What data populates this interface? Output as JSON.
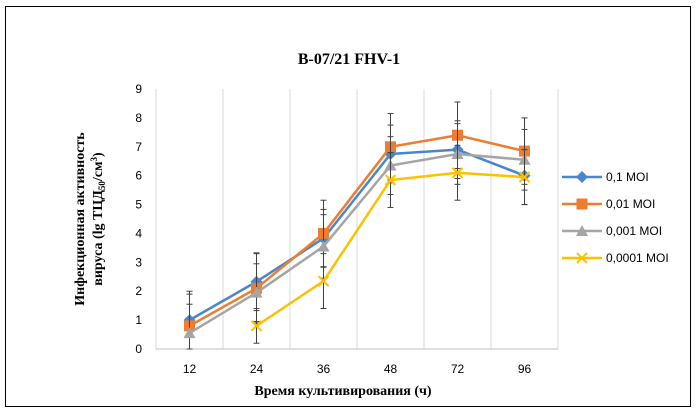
{
  "chart_data": {
    "type": "line",
    "title": "B-07/21 FHV-1",
    "xlabel": "Время культивирования (ч)",
    "ylabel_line1": "Инфекционная активность",
    "ylabel_line2_prefix": "вируса (lg ТЦД",
    "ylabel_sub": "50",
    "ylabel_mid": "/см",
    "ylabel_sup": "3",
    "ylabel_suffix": ")",
    "categories": [
      "12",
      "24",
      "36",
      "48",
      "72",
      "96"
    ],
    "ylim": [
      0,
      9
    ],
    "yticks": [
      "0",
      "1",
      "2",
      "3",
      "4",
      "5",
      "6",
      "7",
      "8",
      "9"
    ],
    "grid": "vertical",
    "legend_position": "right",
    "series": [
      {
        "name": "0,1 MOI",
        "color": "#4a86c8",
        "marker": "diamond",
        "values": [
          1.0,
          2.33,
          3.83,
          6.75,
          6.9,
          6.0
        ],
        "error": [
          1.0,
          1.0,
          1.0,
          1.0,
          1.0,
          1.0
        ]
      },
      {
        "name": "0,01 MOI",
        "color": "#ed7d31",
        "marker": "square",
        "values": [
          0.8,
          2.1,
          4.0,
          7.0,
          7.4,
          6.85
        ],
        "error": [
          1.1,
          1.2,
          1.15,
          1.15,
          1.15,
          1.15
        ]
      },
      {
        "name": "0,001 MOI",
        "color": "#a5a5a5",
        "marker": "triangle",
        "values": [
          0.55,
          1.95,
          3.55,
          6.35,
          6.75,
          6.55
        ],
        "error": [
          1.0,
          1.0,
          1.1,
          1.0,
          1.05,
          1.05
        ]
      },
      {
        "name": "0,0001 MOI",
        "color": "#ffc000",
        "marker": "x",
        "values": [
          null,
          0.8,
          2.35,
          5.85,
          6.1,
          5.95
        ],
        "error": [
          null,
          0.6,
          0.95,
          0.95,
          0.95,
          0.95
        ]
      }
    ]
  }
}
